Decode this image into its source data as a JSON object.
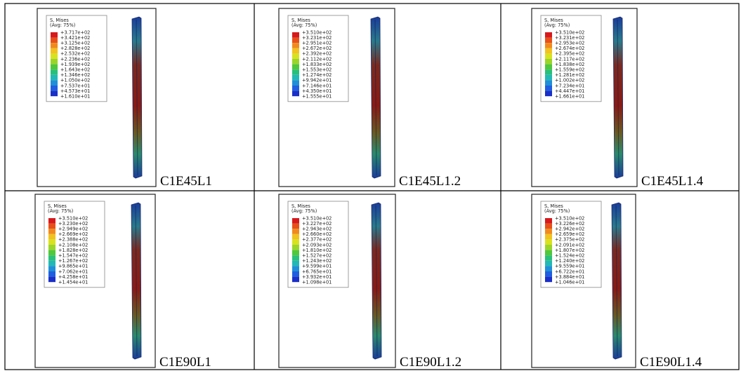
{
  "panels": [
    {
      "label": "C1E45L1",
      "legend_title": "S, Mises",
      "legend_subtitle": "(Avg: 75%)",
      "legend_values": [
        "+3.717e+02",
        "+3.421e+02",
        "+3.125e+02",
        "+2.828e+02",
        "+2.532e+02",
        "+2.236e+02",
        "+1.939e+02",
        "+1.643e+02",
        "+1.346e+02",
        "+1.050e+02",
        "+7.537e+01",
        "+4.573e+01",
        "+1.610e+01"
      ]
    },
    {
      "label": "C1E45L1.2",
      "legend_title": "S, Mises",
      "legend_subtitle": "(Avg: 75%)",
      "legend_values": [
        "+3.510e+02",
        "+3.231e+02",
        "+2.951e+02",
        "+2.672e+02",
        "+2.392e+02",
        "+2.112e+02",
        "+1.833e+02",
        "+1.553e+02",
        "+1.274e+02",
        "+9.942e+01",
        "+7.146e+01",
        "+4.350e+01",
        "+1.555e+01"
      ]
    },
    {
      "label": "C1E45L1.4",
      "legend_title": "S, Mises",
      "legend_subtitle": "(Avg: 75%)",
      "legend_values": [
        "+3.510e+02",
        "+3.231e+02",
        "+2.953e+02",
        "+2.674e+02",
        "+2.395e+02",
        "+2.117e+02",
        "+1.838e+02",
        "+1.559e+02",
        "+1.281e+02",
        "+1.002e+02",
        "+7.234e+01",
        "+4.447e+01",
        "+1.661e+01"
      ]
    },
    {
      "label": "C1E90L1",
      "legend_title": "S, Mises",
      "legend_subtitle": "(Avg: 75%)",
      "legend_values": [
        "+3.510e+02",
        "+3.230e+02",
        "+2.949e+02",
        "+2.669e+02",
        "+2.388e+02",
        "+2.108e+02",
        "+1.828e+02",
        "+1.547e+02",
        "+1.267e+02",
        "+9.865e+01",
        "+7.062e+01",
        "+4.258e+01",
        "+1.454e+01"
      ]
    },
    {
      "label": "C1E90L1.2",
      "legend_title": "S, Mises",
      "legend_subtitle": "(Avg: 75%)",
      "legend_values": [
        "+3.510e+02",
        "+3.227e+02",
        "+2.943e+02",
        "+2.660e+02",
        "+2.377e+02",
        "+2.093e+02",
        "+1.810e+02",
        "+1.527e+02",
        "+1.243e+02",
        "+9.599e+01",
        "+6.765e+01",
        "+3.932e+01",
        "+1.098e+01"
      ]
    },
    {
      "label": "C1E90L1.4",
      "legend_title": "S, Mises",
      "legend_subtitle": "(Avg: 75%)",
      "legend_values": [
        "+3.510e+02",
        "+3.226e+02",
        "+2.942e+02",
        "+2.659e+02",
        "+2.375e+02",
        "+2.091e+02",
        "+1.807e+02",
        "+1.524e+02",
        "+1.240e+02",
        "+9.559e+01",
        "+6.722e+01",
        "+3.884e+01",
        "+1.046e+01"
      ]
    }
  ]
}
